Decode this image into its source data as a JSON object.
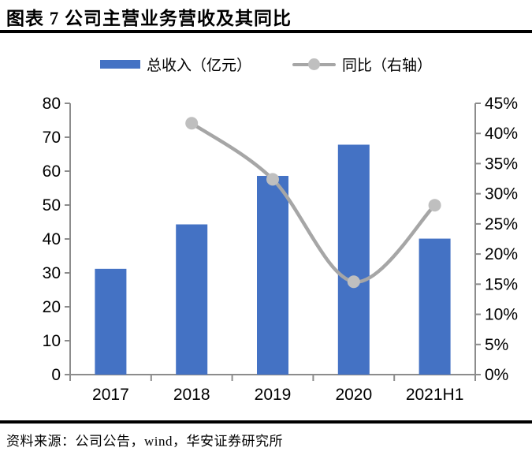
{
  "header": {
    "title": "图表 7 公司主营业务营收及其同比"
  },
  "footer": {
    "source": "资料来源：公司公告，wind，华安证券研究所"
  },
  "colors": {
    "bar": "#4472C4",
    "line": "#A6A6A6",
    "marker": "#BFBFBF",
    "axis": "#8C8C8C",
    "text": "#000000",
    "rule": "#000000"
  },
  "chart_data": {
    "type": "bar+line combo",
    "categories": [
      "2017",
      "2018",
      "2019",
      "2020",
      "2021H1"
    ],
    "series": [
      {
        "name": "总收入（亿元）",
        "type": "bar",
        "axis": "left",
        "values": [
          31.2,
          44.3,
          58.6,
          67.8,
          40.1
        ]
      },
      {
        "name": "同比（右轴）",
        "type": "line",
        "axis": "right",
        "values": [
          null,
          41.7,
          32.4,
          15.4,
          28.1
        ]
      }
    ],
    "left_axis": {
      "min": 0,
      "max": 80,
      "step": 10,
      "suffix": ""
    },
    "right_axis": {
      "min": 0,
      "max": 45,
      "step": 5,
      "suffix": "%"
    },
    "grid": false,
    "legend_position": "top-center"
  }
}
